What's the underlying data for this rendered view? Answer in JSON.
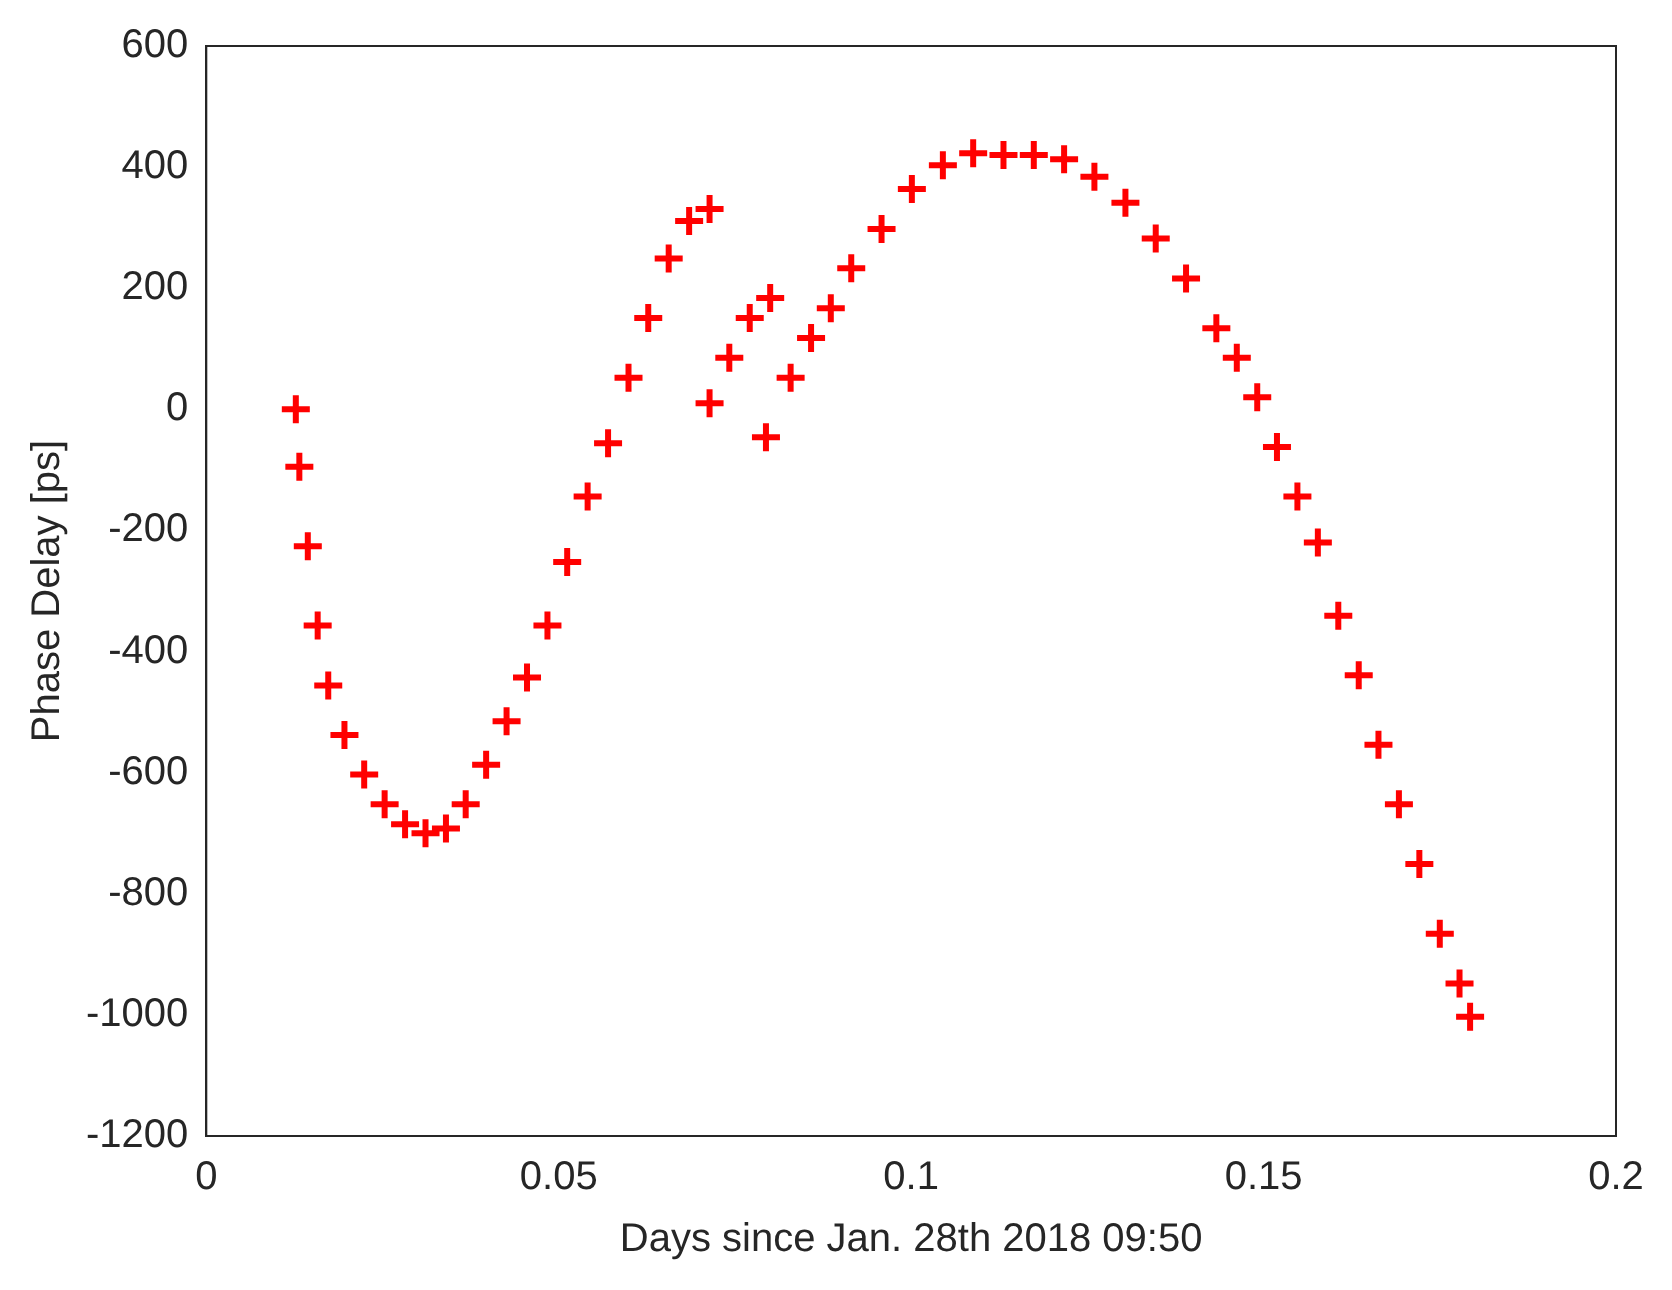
{
  "chart_data": {
    "type": "scatter",
    "xlabel": "Days since Jan. 28th 2018 09:50",
    "ylabel": "Phase Delay [ps]",
    "marker": "cross",
    "grid": false,
    "xlim": [
      0,
      0.2
    ],
    "xticks": [
      0,
      0.05,
      0.1,
      0.15,
      0.2
    ],
    "ylim": [
      -1200,
      600
    ],
    "yticks": [
      -1200,
      -1000,
      -800,
      -600,
      -400,
      -200,
      0,
      200,
      400,
      600
    ],
    "series": [
      {
        "color": "#ff0000",
        "x": [
          0.0127,
          0.0132,
          0.0144,
          0.0158,
          0.0173,
          0.0196,
          0.0224,
          0.0253,
          0.0282,
          0.0311,
          0.034,
          0.0368,
          0.0397,
          0.0426,
          0.0455,
          0.0484,
          0.0512,
          0.0541,
          0.057,
          0.0599,
          0.0627,
          0.0656,
          0.0685,
          0.0714,
          0.0714,
          0.0742,
          0.0771,
          0.08,
          0.0794,
          0.0829,
          0.0858,
          0.0886,
          0.0915,
          0.0958,
          0.1001,
          0.1045,
          0.1088,
          0.1131,
          0.1174,
          0.1217,
          0.126,
          0.1304,
          0.1347,
          0.139,
          0.1433,
          0.1462,
          0.1491,
          0.1519,
          0.1548,
          0.1577,
          0.1606,
          0.1635,
          0.1663,
          0.1692,
          0.1721,
          0.175,
          0.1778,
          0.1793
        ],
        "values": [
          0,
          -95,
          -226,
          -357,
          -456,
          -538,
          -603,
          -652,
          -685,
          -700,
          -692,
          -652,
          -587,
          -515,
          -443,
          -357,
          -252,
          -144,
          -56,
          52,
          151,
          249,
          311,
          331,
          10,
          85,
          151,
          184,
          -46,
          52,
          118,
          167,
          233,
          298,
          364,
          403,
          423,
          420,
          420,
          413,
          384,
          341,
          282,
          216,
          134,
          85,
          20,
          -62,
          -144,
          -220,
          -341,
          -439,
          -554,
          -652,
          -751,
          -866,
          -948,
          -1003
        ]
      }
    ]
  }
}
